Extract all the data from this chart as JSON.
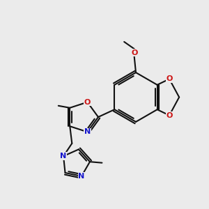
{
  "bg": "#ebebeb",
  "bc": "#111111",
  "Nc": "#1515cc",
  "Oc": "#cc1515",
  "bw": 1.5,
  "fs": 8.0,
  "fig_w": 3.0,
  "fig_h": 3.0,
  "dpi": 100,
  "xlim": [
    0,
    1
  ],
  "ylim": [
    0,
    1
  ]
}
